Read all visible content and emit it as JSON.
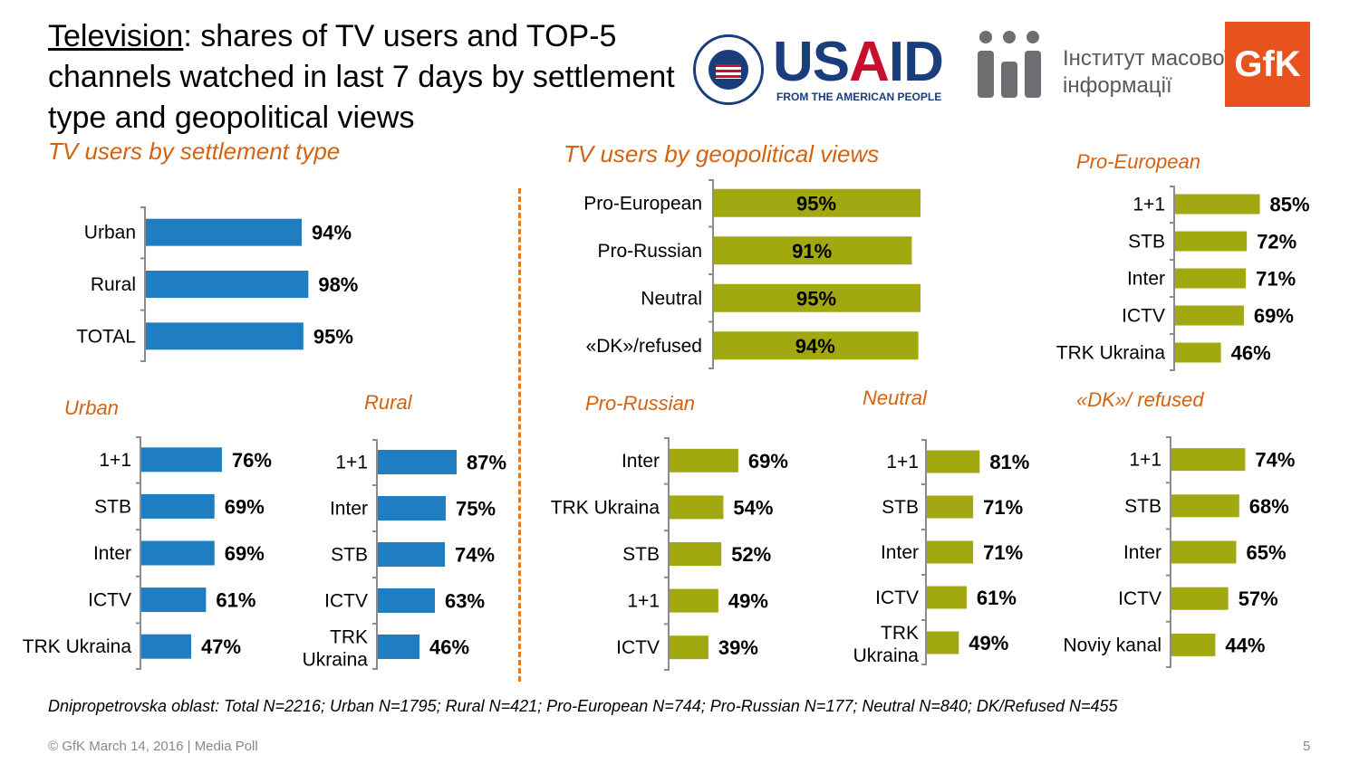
{
  "title": {
    "underlined": "Television",
    "rest": ": shares of TV users and TOP-5 channels watched in last 7 days by settlement type and geopolitical views"
  },
  "logos": {
    "usaid_word_blue": "US",
    "usaid_word_red": "A",
    "usaid_word_end": "ID",
    "usaid_tagline": "FROM THE AMERICAN PEOPLE",
    "imi_line1": "Інститут масової",
    "imi_line2": "інформації",
    "gfk": "GfK"
  },
  "sections": {
    "settlement": "TV users  by settlement type",
    "geo": "TV users by geopolitical views",
    "pro_european": "Pro-European",
    "urban": "Urban",
    "rural": "Rural",
    "pro_russian": "Pro-Russian",
    "neutral": "Neutral",
    "dk": "«DK»/ refused"
  },
  "colors": {
    "blue": "#1f7ec1",
    "olive": "#a2a80f",
    "orange": "#d4620e",
    "axis": "#8c8c8c"
  },
  "chart_data": [
    {
      "id": "settlement",
      "type": "bar",
      "orientation": "horizontal",
      "color": "blue",
      "inside_labels": false,
      "categories": [
        "Urban",
        "Rural",
        "TOTAL"
      ],
      "values": [
        94,
        98,
        95
      ],
      "unit": "%"
    },
    {
      "id": "geo",
      "type": "bar",
      "orientation": "horizontal",
      "color": "olive",
      "inside_labels": true,
      "categories": [
        "Pro-European",
        "Pro-Russian",
        "Neutral",
        "«DK»/refused"
      ],
      "values": [
        95,
        91,
        95,
        94
      ],
      "unit": "%"
    },
    {
      "id": "pro_european",
      "type": "bar",
      "orientation": "horizontal",
      "color": "olive",
      "inside_labels": false,
      "categories": [
        "1+1",
        "STB",
        "Inter",
        "ICTV",
        "TRK Ukraina"
      ],
      "values": [
        85,
        72,
        71,
        69,
        46
      ],
      "unit": "%"
    },
    {
      "id": "urban",
      "type": "bar",
      "orientation": "horizontal",
      "color": "blue",
      "inside_labels": false,
      "categories": [
        "1+1",
        "STB",
        "Inter",
        "ICTV",
        "TRK Ukraina"
      ],
      "values": [
        76,
        69,
        69,
        61,
        47
      ],
      "unit": "%"
    },
    {
      "id": "rural",
      "type": "bar",
      "orientation": "horizontal",
      "color": "blue",
      "inside_labels": false,
      "categories": [
        "1+1",
        "Inter",
        "STB",
        "ICTV",
        "TRK Ukraina"
      ],
      "values": [
        87,
        75,
        74,
        63,
        46
      ],
      "unit": "%"
    },
    {
      "id": "pro_russian",
      "type": "bar",
      "orientation": "horizontal",
      "color": "olive",
      "inside_labels": false,
      "categories": [
        "Inter",
        "TRK Ukraina",
        "STB",
        "1+1",
        "ICTV"
      ],
      "values": [
        69,
        54,
        52,
        49,
        39
      ],
      "unit": "%"
    },
    {
      "id": "neutral",
      "type": "bar",
      "orientation": "horizontal",
      "color": "olive",
      "inside_labels": false,
      "categories": [
        "1+1",
        "STB",
        "Inter",
        "ICTV",
        "TRK Ukraina"
      ],
      "values": [
        81,
        71,
        71,
        61,
        49
      ],
      "unit": "%"
    },
    {
      "id": "dk",
      "type": "bar",
      "orientation": "horizontal",
      "color": "olive",
      "inside_labels": false,
      "categories": [
        "1+1",
        "STB",
        "Inter",
        "ICTV",
        "Noviy kanal"
      ],
      "values": [
        74,
        68,
        65,
        57,
        44
      ],
      "unit": "%"
    }
  ],
  "footnote": "Dnipropetrovska oblast: Total N=2216; Urban N=1795; Rural N=421; Pro-European N=744; Pro-Russian N=177; Neutral N=840; DK/Refused N=455",
  "footer": "© GfK March 14, 2016 | Media Poll",
  "page_number": "5"
}
